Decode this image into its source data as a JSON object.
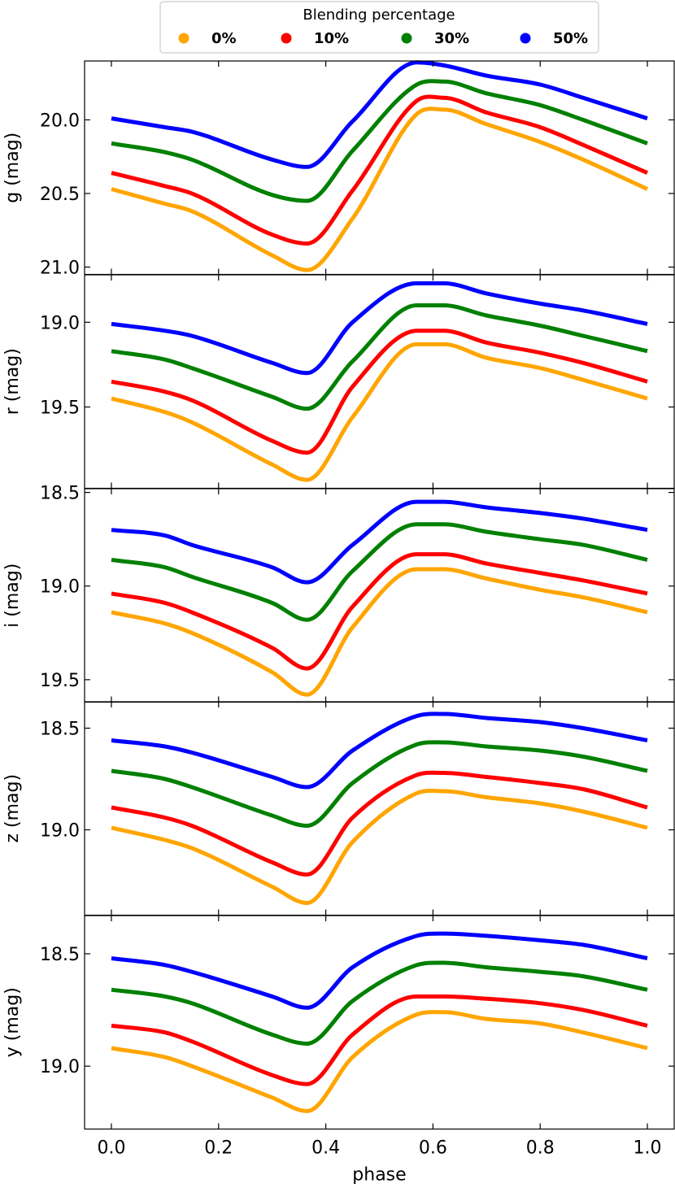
{
  "chart_data": {
    "type": "line",
    "xlabel": "phase",
    "xlim": [
      -0.05,
      1.05
    ],
    "xticks": [
      0.0,
      0.2,
      0.4,
      0.6,
      0.8,
      1.0
    ],
    "xtick_labels": [
      "0.0",
      "0.2",
      "0.4",
      "0.6",
      "0.8",
      "1.0"
    ],
    "y_inverted": true,
    "legend": {
      "title": "Blending percentage",
      "position": "top-center",
      "entries": [
        {
          "label": "0%",
          "color": "#ffa500"
        },
        {
          "label": "10%",
          "color": "#ff0000"
        },
        {
          "label": "30%",
          "color": "#008000"
        },
        {
          "label": "50%",
          "color": "#0000ff"
        }
      ]
    },
    "panels": [
      {
        "band": "g",
        "ylabel": "g (mag)",
        "ylim": [
          21.05,
          19.6
        ],
        "yticks": [
          20.0,
          20.5,
          21.0
        ],
        "ytick_labels": [
          "20.0",
          "20.5",
          "21.0"
        ],
        "series": [
          {
            "name": "0%",
            "color": "#ffa500",
            "values": [
              20.47,
              20.57,
              20.62,
              20.92,
              21.02,
              20.67,
              19.96,
              19.93,
              20.03,
              20.15,
              20.27,
              20.47
            ]
          },
          {
            "name": "10%",
            "color": "#ff0000",
            "values": [
              20.36,
              20.45,
              20.5,
              20.78,
              20.84,
              20.48,
              19.87,
              19.85,
              19.95,
              20.05,
              20.17,
              20.36
            ]
          },
          {
            "name": "30%",
            "color": "#008000",
            "values": [
              20.16,
              20.22,
              20.27,
              20.51,
              20.55,
              20.21,
              19.76,
              19.74,
              19.82,
              19.9,
              20.0,
              20.16
            ]
          },
          {
            "name": "50%",
            "color": "#0000ff",
            "values": [
              19.99,
              20.05,
              20.08,
              20.27,
              20.32,
              20.01,
              19.61,
              19.63,
              19.7,
              19.76,
              19.85,
              19.99
            ]
          }
        ]
      },
      {
        "band": "r",
        "ylabel": "r (mag)",
        "ylim": [
          19.98,
          18.72
        ],
        "yticks": [
          19.0,
          19.5
        ],
        "ytick_labels": [
          "19.0",
          "19.5"
        ],
        "series": [
          {
            "name": "0%",
            "color": "#ffa500",
            "values": [
              19.45,
              19.53,
              19.59,
              19.84,
              19.93,
              19.56,
              19.13,
              19.13,
              19.21,
              19.27,
              19.34,
              19.45
            ]
          },
          {
            "name": "10%",
            "color": "#ff0000",
            "values": [
              19.35,
              19.41,
              19.46,
              19.7,
              19.77,
              19.38,
              19.05,
              19.05,
              19.12,
              19.18,
              19.24,
              19.35
            ]
          },
          {
            "name": "30%",
            "color": "#008000",
            "values": [
              19.17,
              19.22,
              19.27,
              19.44,
              19.51,
              19.23,
              18.9,
              18.9,
              18.96,
              19.02,
              19.08,
              19.17
            ]
          },
          {
            "name": "50%",
            "color": "#0000ff",
            "values": [
              19.01,
              19.05,
              19.08,
              19.24,
              19.3,
              19.0,
              18.77,
              18.77,
              18.83,
              18.89,
              18.93,
              19.01
            ]
          }
        ]
      },
      {
        "band": "i",
        "ylabel": "i (mag)",
        "ylim": [
          19.62,
          18.48
        ],
        "yticks": [
          18.5,
          19.0,
          19.5
        ],
        "ytick_labels": [
          "18.5",
          "19.0",
          "19.5"
        ],
        "series": [
          {
            "name": "0%",
            "color": "#ffa500",
            "values": [
              19.14,
              19.2,
              19.25,
              19.46,
              19.58,
              19.22,
              18.91,
              18.91,
              18.96,
              19.02,
              19.06,
              19.14
            ]
          },
          {
            "name": "10%",
            "color": "#ff0000",
            "values": [
              19.04,
              19.09,
              19.14,
              19.33,
              19.44,
              19.11,
              18.83,
              18.83,
              18.88,
              18.93,
              18.97,
              19.04
            ]
          },
          {
            "name": "30%",
            "color": "#008000",
            "values": [
              18.86,
              18.9,
              18.95,
              19.09,
              19.18,
              18.92,
              18.67,
              18.67,
              18.71,
              18.75,
              18.78,
              18.86
            ]
          },
          {
            "name": "50%",
            "color": "#0000ff",
            "values": [
              18.7,
              18.73,
              18.78,
              18.9,
              18.98,
              18.78,
              18.55,
              18.55,
              18.58,
              18.61,
              18.64,
              18.7
            ]
          }
        ]
      },
      {
        "band": "z",
        "ylabel": "z (mag)",
        "ylim": [
          19.42,
          18.37
        ],
        "yticks": [
          18.5,
          19.0
        ],
        "ytick_labels": [
          "18.5",
          "19.0"
        ],
        "series": [
          {
            "name": "0%",
            "color": "#ffa500",
            "values": [
              18.99,
              19.05,
              19.09,
              19.28,
              19.36,
              19.06,
              18.82,
              18.81,
              18.84,
              18.87,
              18.91,
              18.99
            ]
          },
          {
            "name": "10%",
            "color": "#ff0000",
            "values": [
              18.89,
              18.94,
              18.98,
              19.16,
              19.22,
              18.94,
              18.73,
              18.72,
              18.74,
              18.77,
              18.8,
              18.89
            ]
          },
          {
            "name": "30%",
            "color": "#008000",
            "values": [
              18.71,
              18.75,
              18.79,
              18.93,
              18.98,
              18.77,
              18.58,
              18.57,
              18.59,
              18.61,
              18.64,
              18.71
            ]
          },
          {
            "name": "50%",
            "color": "#0000ff",
            "values": [
              18.56,
              18.59,
              18.62,
              18.74,
              18.79,
              18.61,
              18.44,
              18.43,
              18.45,
              18.47,
              18.5,
              18.56
            ]
          }
        ]
      },
      {
        "band": "y",
        "ylabel": "y (mag)",
        "ylim": [
          19.28,
          18.33
        ],
        "yticks": [
          18.5,
          19.0
        ],
        "ytick_labels": [
          "18.5",
          "19.0"
        ],
        "series": [
          {
            "name": "0%",
            "color": "#ffa500",
            "values": [
              18.92,
              18.96,
              19.0,
              19.14,
              19.2,
              18.96,
              18.77,
              18.76,
              18.79,
              18.81,
              18.85,
              18.92
            ]
          },
          {
            "name": "10%",
            "color": "#ff0000",
            "values": [
              18.82,
              18.85,
              18.89,
              19.04,
              19.08,
              18.86,
              18.69,
              18.69,
              18.7,
              18.72,
              18.75,
              18.82
            ]
          },
          {
            "name": "30%",
            "color": "#008000",
            "values": [
              18.66,
              18.69,
              18.72,
              18.86,
              18.9,
              18.71,
              18.55,
              18.54,
              18.56,
              18.58,
              18.6,
              18.66
            ]
          },
          {
            "name": "50%",
            "color": "#0000ff",
            "values": [
              18.52,
              18.55,
              18.58,
              18.69,
              18.74,
              18.56,
              18.42,
              18.41,
              18.42,
              18.44,
              18.46,
              18.52
            ]
          }
        ]
      }
    ],
    "x": [
      0.0,
      0.1,
      0.15,
      0.3,
      0.365,
      0.45,
      0.57,
      0.62,
      0.7,
      0.8,
      0.88,
      1.0
    ]
  }
}
